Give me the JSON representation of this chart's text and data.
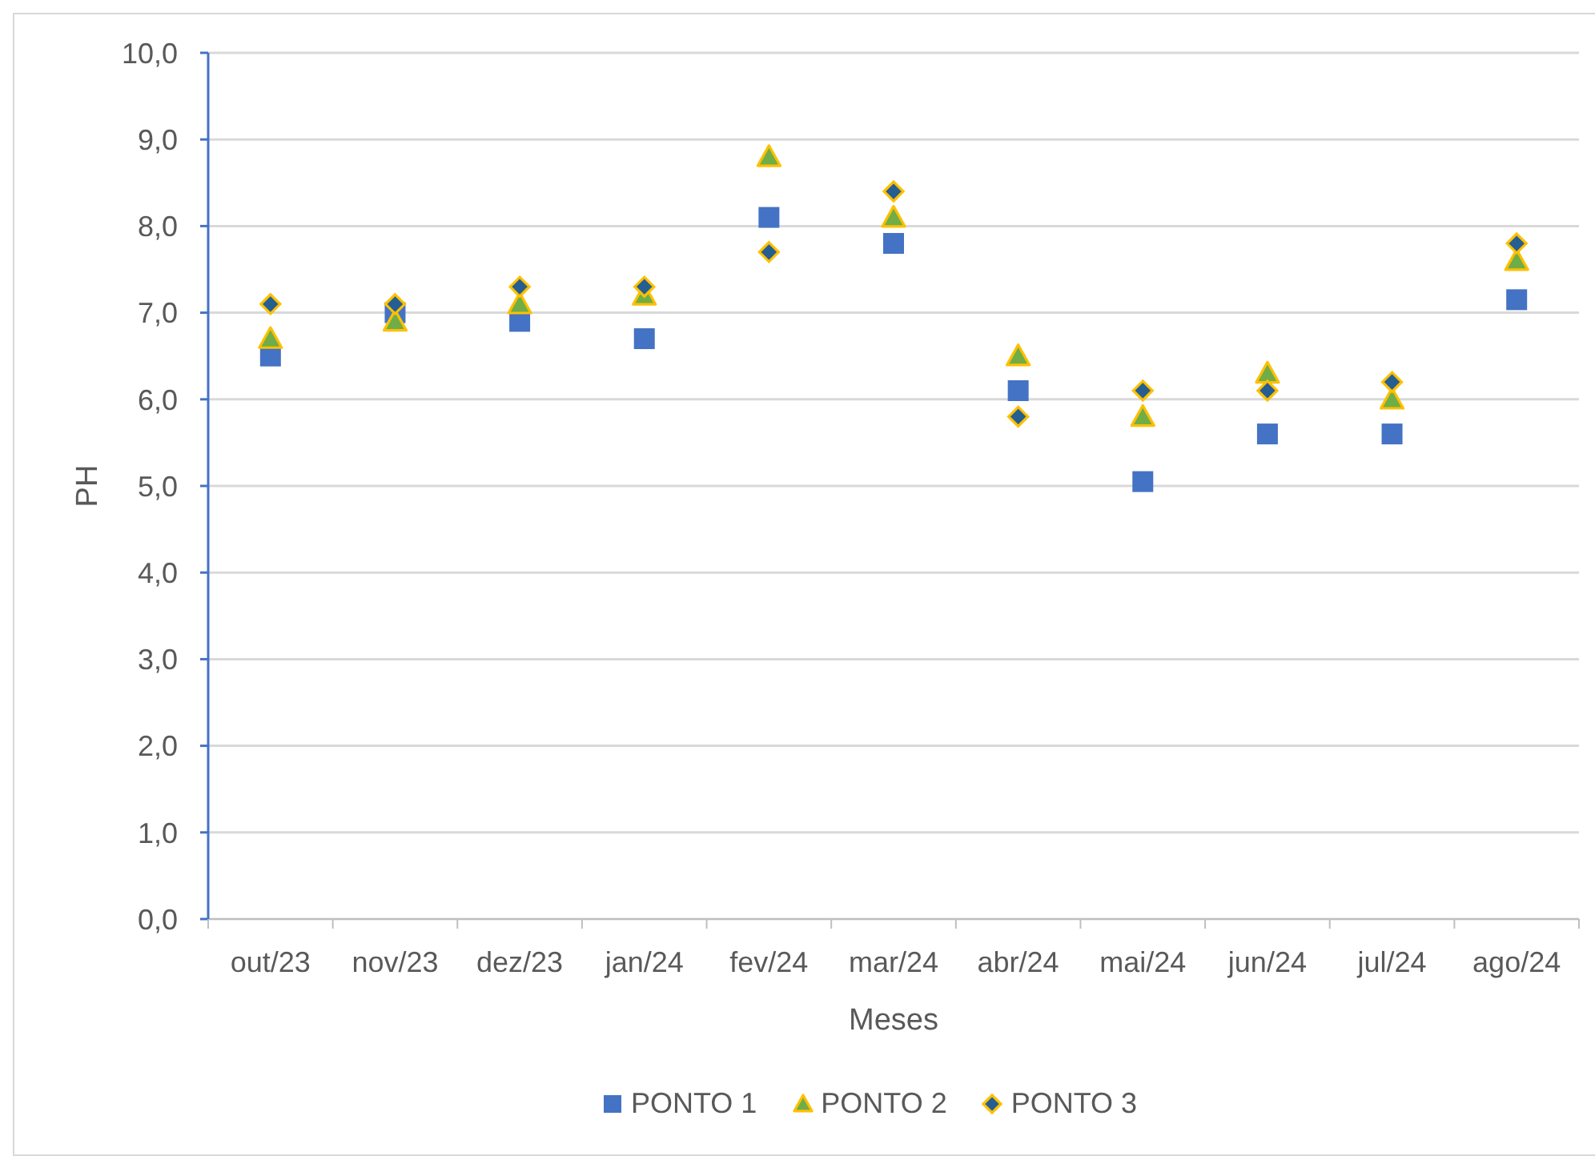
{
  "chart_data": {
    "type": "scatter",
    "xlabel": "Meses",
    "ylabel": "PH",
    "categories": [
      "out/23",
      "nov/23",
      "dez/23",
      "jan/24",
      "fev/24",
      "mar/24",
      "abr/24",
      "mai/24",
      "jun/24",
      "jul/24",
      "ago/24"
    ],
    "ylim": [
      0,
      10
    ],
    "yticks": [
      {
        "value": 0,
        "label": "0,0"
      },
      {
        "value": 1,
        "label": "1,0"
      },
      {
        "value": 2,
        "label": "2,0"
      },
      {
        "value": 3,
        "label": "3,0"
      },
      {
        "value": 4,
        "label": "4,0"
      },
      {
        "value": 5,
        "label": "5,0"
      },
      {
        "value": 6,
        "label": "6,0"
      },
      {
        "value": 7,
        "label": "7,0"
      },
      {
        "value": 8,
        "label": "8,0"
      },
      {
        "value": 9,
        "label": "9,0"
      },
      {
        "value": 10,
        "label": "10,0"
      }
    ],
    "grid": "y",
    "legend": "bottom",
    "series": [
      {
        "name": "PONTO 1",
        "color": "#4472c4",
        "marker": "square",
        "values": [
          6.5,
          7.0,
          6.9,
          6.7,
          8.1,
          7.8,
          6.1,
          5.05,
          5.6,
          5.6,
          7.15
        ]
      },
      {
        "name": "PONTO 2",
        "color": "#70ad47",
        "marker": "triangle",
        "values": [
          6.7,
          6.9,
          7.1,
          7.2,
          8.8,
          8.1,
          6.5,
          5.8,
          6.3,
          6.0,
          7.6
        ]
      },
      {
        "name": "PONTO 3",
        "color": "#255e91",
        "marker": "diamond",
        "values": [
          7.1,
          7.1,
          7.3,
          7.3,
          7.7,
          8.4,
          5.8,
          6.1,
          6.1,
          6.2,
          7.8
        ]
      }
    ]
  }
}
